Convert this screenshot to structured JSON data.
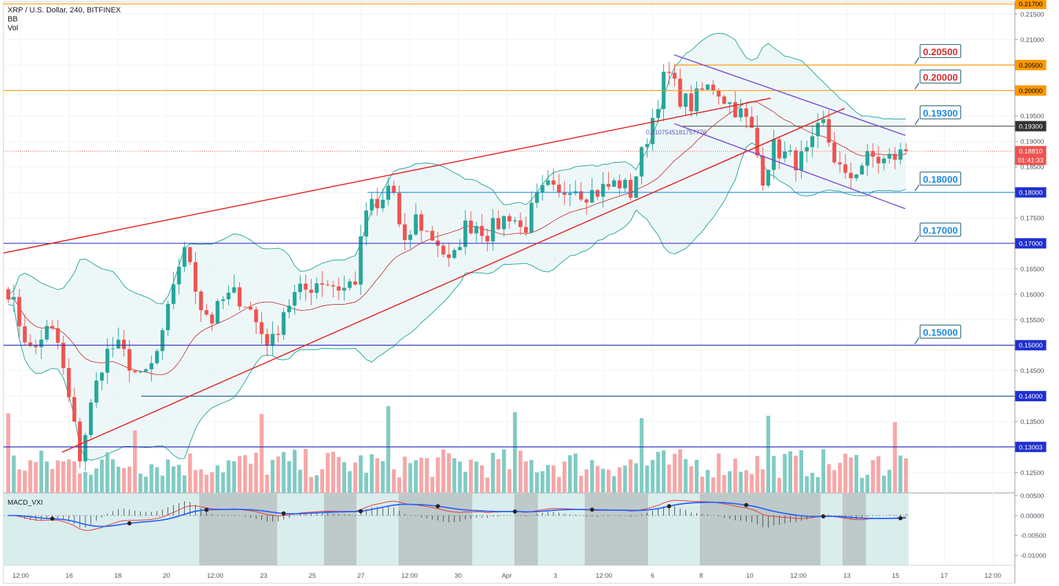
{
  "header": {
    "symbol_line": "XRP / U.S. Dollar, 240, BITFINEX",
    "indicator_bb": "BB",
    "indicator_vol": "Vol",
    "macd_label": "MACD_VXI"
  },
  "colors": {
    "up": "#26a69a",
    "down": "#ef5350",
    "orange": "#ff9800",
    "blue": "#2962ff",
    "purple": "#7b4fd0",
    "trend_red": "#e02020"
  },
  "chart_data": {
    "type": "candlestick",
    "symbol": "XRP / U.S. Dollar",
    "timeframe": "240",
    "exchange": "BITFINEX",
    "y_range": [
      0.121,
      0.2175
    ],
    "y_ticks": [
      "0.21500",
      "0.21000",
      "0.20500",
      "0.20000",
      "0.19500",
      "0.19000",
      "0.18500",
      "0.18000",
      "0.17500",
      "0.17000",
      "0.16500",
      "0.16000",
      "0.15500",
      "0.15000",
      "0.14500",
      "0.14000",
      "0.13500",
      "0.13000",
      "0.12500"
    ],
    "x_ticks": [
      "12:00",
      "16",
      "18",
      "20",
      "12:00",
      "23",
      "25",
      "27",
      "12:00",
      "30",
      "Apr",
      "3",
      "12:00",
      "6",
      "8",
      "10",
      "12:00",
      "13",
      "15",
      "17",
      "12:00"
    ],
    "price_labels": [
      {
        "text": "0.21700",
        "price": 0.217,
        "style": "orange"
      },
      {
        "text": "0.20500",
        "price": 0.205,
        "style": "orange"
      },
      {
        "text": "0.20000",
        "price": 0.2,
        "style": "orange"
      },
      {
        "text": "0.19300",
        "price": 0.193,
        "style": "dark"
      },
      {
        "text": "0.18810",
        "price": 0.1881,
        "style": "red"
      },
      {
        "text": "01:41:33",
        "price": 0.1864,
        "style": "red"
      },
      {
        "text": "0.18000",
        "price": 0.18,
        "style": "blue"
      },
      {
        "text": "0.17000",
        "price": 0.17,
        "style": "blue"
      },
      {
        "text": "0.15000",
        "price": 0.15,
        "style": "blue"
      },
      {
        "text": "0.14000",
        "price": 0.14,
        "style": "blue"
      },
      {
        "text": "0.13003",
        "price": 0.13003,
        "style": "blue"
      }
    ],
    "level_tags": [
      {
        "text": "0.20500",
        "price": 0.205,
        "color": "#d32f2f"
      },
      {
        "text": "0.20000",
        "price": 0.2,
        "color": "#d32f2f"
      },
      {
        "text": "0.19300",
        "price": 0.193,
        "color": "#1e88e5"
      },
      {
        "text": "0.18000",
        "price": 0.18,
        "color": "#1e88e5"
      },
      {
        "text": "0.17000",
        "price": 0.17,
        "color": "#1e88e5"
      },
      {
        "text": "0.15000",
        "price": 0.15,
        "color": "#1e88e5"
      }
    ],
    "fib_annotation": "0.8107545181757776",
    "close_keypoints": [
      0.161,
      0.154,
      0.148,
      0.153,
      0.152,
      0.14,
      0.128,
      0.139,
      0.148,
      0.15,
      0.147,
      0.143,
      0.146,
      0.152,
      0.165,
      0.169,
      0.158,
      0.155,
      0.159,
      0.16,
      0.158,
      0.153,
      0.15,
      0.157,
      0.16,
      0.161,
      0.163,
      0.162,
      0.161,
      0.163,
      0.178,
      0.176,
      0.183,
      0.168,
      0.175,
      0.172,
      0.17,
      0.165,
      0.173,
      0.174,
      0.172,
      0.174,
      0.176,
      0.172,
      0.178,
      0.181,
      0.179,
      0.182,
      0.18,
      0.18,
      0.181,
      0.182,
      0.18,
      0.188,
      0.196,
      0.204,
      0.199,
      0.197,
      0.2,
      0.201,
      0.198,
      0.196,
      0.193,
      0.183,
      0.189,
      0.187,
      0.186,
      0.188,
      0.194,
      0.187,
      0.182,
      0.185,
      0.187,
      0.186,
      0.187,
      0.188
    ],
    "volume_range": [
      0,
      100
    ],
    "macd_y_ticks": [
      "0.00500",
      "0.00000",
      "-0.00500",
      "-0.01000"
    ],
    "macd_range": [
      -0.0125,
      0.0055
    ]
  }
}
